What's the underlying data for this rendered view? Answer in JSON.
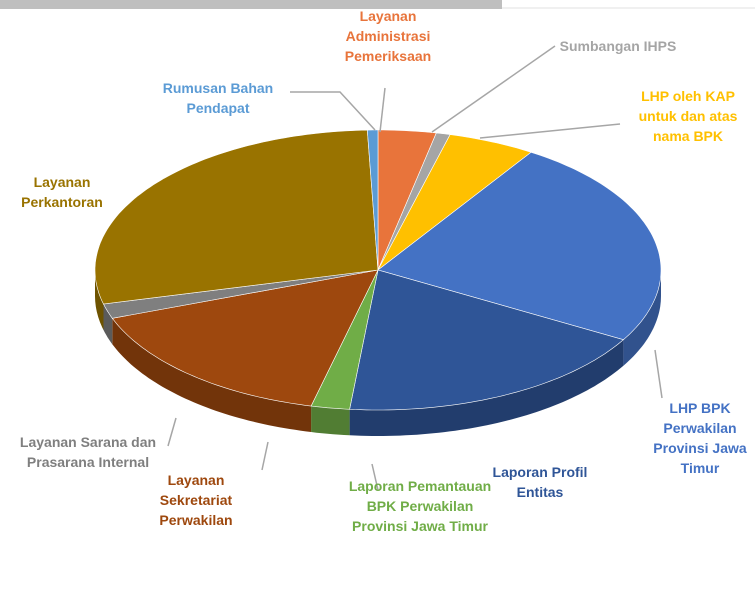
{
  "chart_data": {
    "type": "pie3d",
    "categories": [
      "Layanan Administrasi Pemeriksaan",
      "Sumbangan IHPS",
      "LHP oleh KAP untuk dan atas nama BPK",
      "LHP BPK Perwakilan Provinsi Jawa Timur",
      "Laporan Profil Entitas",
      "Laporan Pemantauan BPK Perwakilan Provinsi Jawa Timur",
      "Layanan Sekretariat Perwakilan",
      "Layanan Sarana dan Prasarana Internal",
      "Layanan Perkantoran",
      "Rumusan Bahan Pendapat"
    ],
    "values": [
      3.3,
      0.8,
      5,
      24.2,
      18.3,
      2.2,
      15.6,
      1.7,
      28.3,
      0.6
    ],
    "colors": [
      "#e8743b",
      "#a5a5a5",
      "#ffc000",
      "#4472c4",
      "#2f5597",
      "#70ad47",
      "#9e480e",
      "#7f7f7f",
      "#997300",
      "#5b9bd5"
    ]
  }
}
